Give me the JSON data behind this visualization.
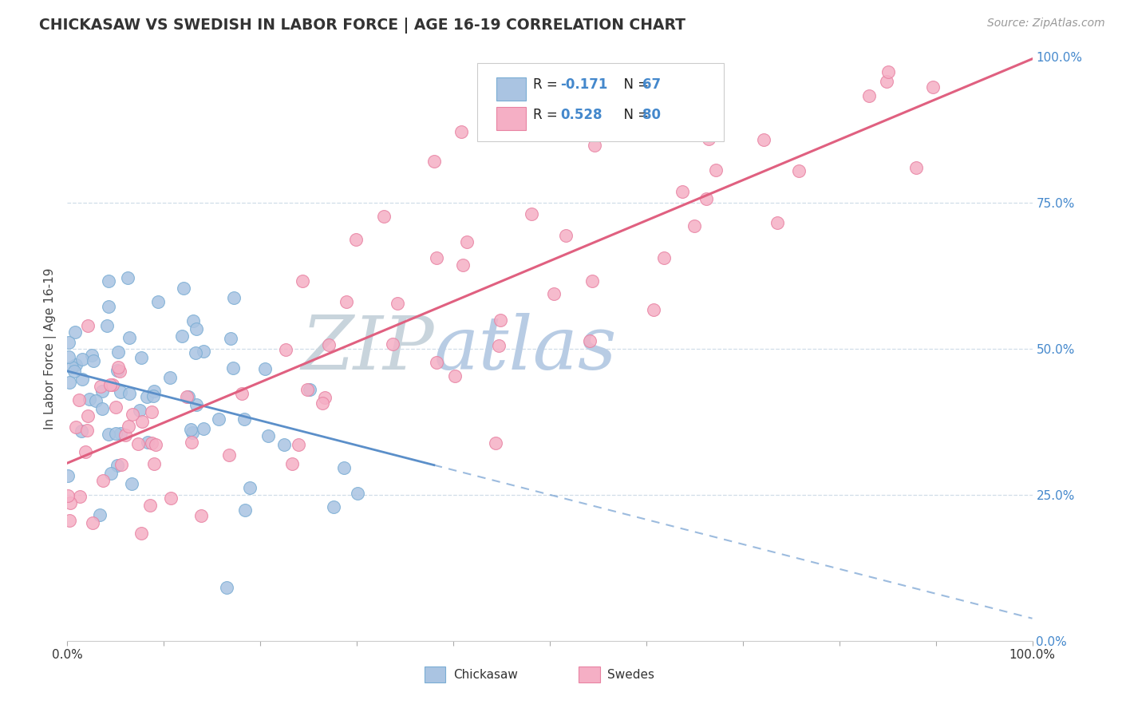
{
  "title": "CHICKASAW VS SWEDISH IN LABOR FORCE | AGE 16-19 CORRELATION CHART",
  "source_text": "Source: ZipAtlas.com",
  "ylabel": "In Labor Force | Age 16-19",
  "xlim": [
    0.0,
    1.0
  ],
  "ylim": [
    0.0,
    1.0
  ],
  "legend_r1": "R = -0.171",
  "legend_n1": "N = 67",
  "legend_r2": "R = 0.528",
  "legend_n2": "N = 80",
  "chickasaw_color": "#aac4e2",
  "swedes_color": "#f5afc5",
  "chickasaw_edge": "#7aadd4",
  "swedes_edge": "#e882a2",
  "trend1_color": "#5b8fc9",
  "trend2_color": "#e06080",
  "watermark_zip": "#c8d8e8",
  "watermark_atlas": "#b8d4f0",
  "grid_color": "#d0dde8",
  "right_axis_color": "#4488cc",
  "title_color": "#333333",
  "source_color": "#999999"
}
